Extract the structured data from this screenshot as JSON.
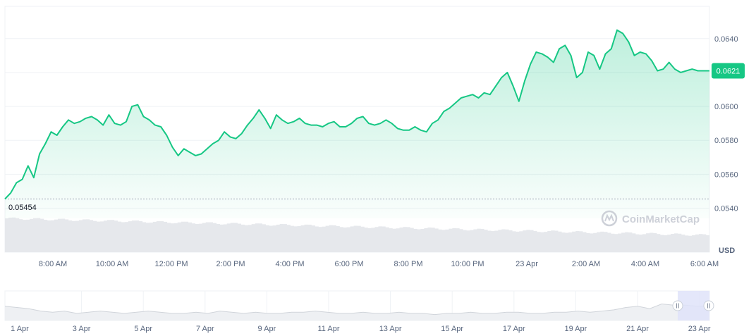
{
  "chart_data": {
    "type": "area",
    "currency_label": "USD",
    "watermark": "CoinMarketCap",
    "open_price_label": "0.05454",
    "current_price_label": "0.0621",
    "colors": {
      "line": "#16c784",
      "area_top": "#16c784",
      "grid": "#eff2f5",
      "volume": "#e6e8ec",
      "axis_text": "#58667e",
      "baseline": "#9aa2b1",
      "navigator_line": "#d0d4da",
      "navigator_window": "#dfe3f9"
    },
    "y_axis": {
      "ticks": [
        "0.0640",
        "0.0620",
        "0.0600",
        "0.0580",
        "0.0560",
        "0.0540"
      ],
      "range": [
        0.0534,
        0.0659
      ]
    },
    "x_axis": {
      "labels": [
        "8:00 AM",
        "10:00 AM",
        "12:00 PM",
        "2:00 PM",
        "4:00 PM",
        "6:00 PM",
        "8:00 PM",
        "10:00 PM",
        "23 Apr",
        "2:00 AM",
        "4:00 AM",
        "6:00 AM"
      ],
      "range_hours": [
        6.9,
        31.3
      ]
    },
    "series": [
      {
        "x": [
          6.9,
          7.1,
          7.3,
          7.5,
          7.7,
          7.9,
          8.1,
          8.3,
          8.5,
          8.7,
          8.9,
          9.1,
          9.3,
          9.5,
          9.7,
          9.9,
          10.1,
          10.3,
          10.5,
          10.7,
          10.9,
          11.1,
          11.3,
          11.5,
          11.7,
          11.9,
          12.1,
          12.3,
          12.5,
          12.7,
          12.9,
          13.1,
          13.3,
          13.5,
          13.7,
          13.9,
          14.1,
          14.3,
          14.5,
          14.7,
          14.9,
          15.1,
          15.3,
          15.5,
          15.7,
          15.9,
          16.1,
          16.3,
          16.5,
          16.7,
          16.9,
          17.1,
          17.3,
          17.5,
          17.7,
          17.9,
          18.1,
          18.3,
          18.5,
          18.7,
          18.9,
          19.1,
          19.3,
          19.5,
          19.7,
          19.9,
          20.1,
          20.3,
          20.5,
          20.7,
          20.9,
          21.1,
          21.3,
          21.5,
          21.7,
          21.9,
          22.1,
          22.3,
          22.5,
          22.7,
          22.9,
          23.1,
          23.3,
          23.5,
          23.7,
          23.9,
          24.1,
          24.3,
          24.5,
          24.7,
          24.9,
          25.1,
          25.3,
          25.5,
          25.7,
          25.9,
          26.1,
          26.3,
          26.5,
          26.7,
          26.9,
          27.1,
          27.3,
          27.5,
          27.7,
          27.9,
          28.1,
          28.3,
          28.5,
          28.7,
          28.9,
          29.1,
          29.3,
          29.5,
          29.7,
          29.9,
          30.1,
          30.3,
          30.5,
          30.7,
          30.9,
          31.1,
          31.3
        ],
        "values": [
          0.05454,
          0.0549,
          0.0555,
          0.0557,
          0.0565,
          0.0558,
          0.0572,
          0.0578,
          0.0585,
          0.0583,
          0.0588,
          0.0592,
          0.059,
          0.0591,
          0.0593,
          0.0594,
          0.0592,
          0.0589,
          0.0595,
          0.059,
          0.0589,
          0.0591,
          0.06,
          0.0601,
          0.0594,
          0.0592,
          0.0589,
          0.0588,
          0.0583,
          0.0576,
          0.0571,
          0.0575,
          0.0573,
          0.0571,
          0.0572,
          0.0575,
          0.0578,
          0.058,
          0.0585,
          0.0582,
          0.0581,
          0.0584,
          0.0589,
          0.0593,
          0.0598,
          0.0593,
          0.0587,
          0.0595,
          0.0592,
          0.059,
          0.0591,
          0.0593,
          0.059,
          0.0589,
          0.0589,
          0.0588,
          0.059,
          0.0591,
          0.0588,
          0.0588,
          0.059,
          0.0593,
          0.0594,
          0.059,
          0.0589,
          0.059,
          0.0592,
          0.059,
          0.0587,
          0.0586,
          0.0586,
          0.0588,
          0.0586,
          0.0585,
          0.059,
          0.0592,
          0.0597,
          0.0599,
          0.0602,
          0.0605,
          0.0606,
          0.0607,
          0.0605,
          0.0608,
          0.0607,
          0.0612,
          0.0617,
          0.062,
          0.0612,
          0.0603,
          0.0615,
          0.0625,
          0.0632,
          0.0631,
          0.0629,
          0.0626,
          0.0634,
          0.0636,
          0.063,
          0.0617,
          0.062,
          0.0632,
          0.063,
          0.0622,
          0.0631,
          0.0634,
          0.0645,
          0.0643,
          0.0638,
          0.063,
          0.0632,
          0.0631,
          0.0627,
          0.0621,
          0.0622,
          0.0626,
          0.0622,
          0.062,
          0.0621,
          0.0622,
          0.0621,
          0.0621,
          0.0621
        ]
      }
    ],
    "navigator": {
      "labels": [
        "1 Apr",
        "3 Apr",
        "5 Apr",
        "7 Apr",
        "9 Apr",
        "11 Apr",
        "13 Apr",
        "15 Apr",
        "17 Apr",
        "19 Apr",
        "21 Apr",
        "23 Apr"
      ],
      "values": [
        0.062,
        0.061,
        0.06,
        0.058,
        0.057,
        0.058,
        0.056,
        0.057,
        0.058,
        0.057,
        0.056,
        0.057,
        0.058,
        0.057,
        0.056,
        0.056,
        0.057,
        0.056,
        0.058,
        0.057,
        0.056,
        0.057,
        0.056,
        0.056,
        0.057,
        0.057,
        0.058,
        0.057,
        0.056,
        0.056,
        0.057,
        0.056,
        0.056,
        0.057,
        0.056,
        0.056,
        0.055,
        0.056,
        0.056,
        0.057,
        0.056,
        0.056,
        0.057,
        0.057,
        0.056,
        0.056,
        0.057,
        0.057,
        0.058,
        0.057,
        0.058,
        0.059,
        0.061,
        0.062,
        0.06,
        0.064,
        0.063,
        0.063,
        0.062,
        0.062
      ]
    }
  }
}
